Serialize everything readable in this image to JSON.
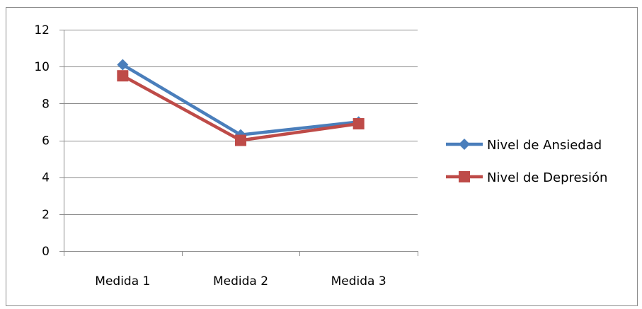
{
  "chart_data": {
    "type": "line",
    "title": "",
    "xlabel": "",
    "ylabel": "",
    "categories": [
      "Medida 1",
      "Medida 2",
      "Medida 3"
    ],
    "ylim": [
      0,
      12
    ],
    "yticks": [
      0,
      2,
      4,
      6,
      8,
      10,
      12
    ],
    "grid": true,
    "legend_position": "right",
    "series": [
      {
        "name": "Nivel de Ansiedad",
        "values": [
          10.1,
          6.3,
          7.0
        ],
        "color": "#4a7ebb",
        "marker": "diamond"
      },
      {
        "name": "Nivel de Depresión",
        "values": [
          9.5,
          6.0,
          6.9
        ],
        "color": "#be4b48",
        "marker": "square"
      }
    ]
  }
}
